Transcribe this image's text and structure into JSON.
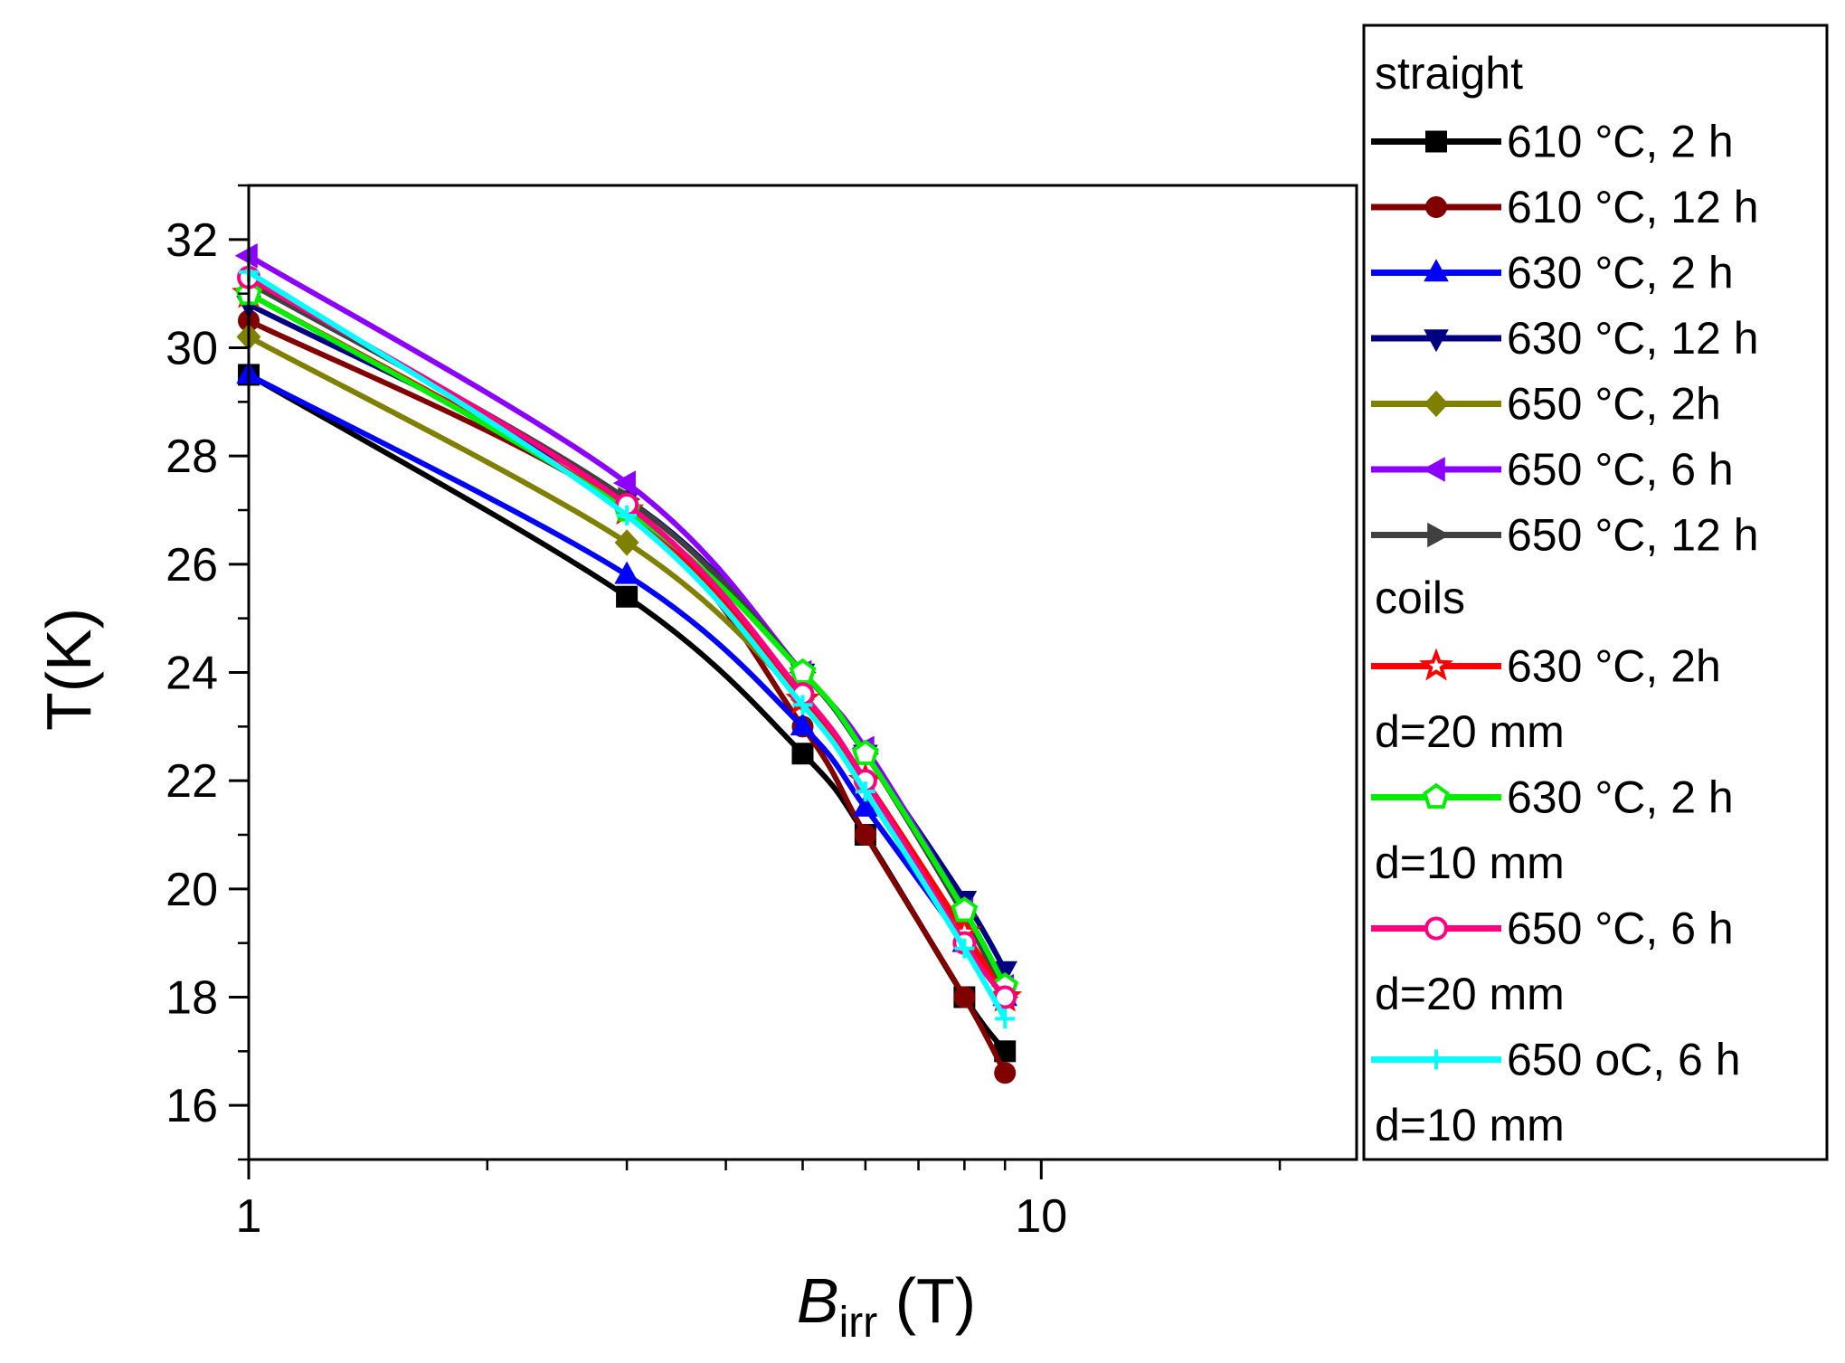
{
  "chart_data": {
    "type": "line",
    "x_scale": "log",
    "xlim": [
      1,
      25
    ],
    "ylim": [
      15,
      33
    ],
    "x_ticks": [
      1,
      10
    ],
    "x_tick_labels": [
      "1",
      "10"
    ],
    "y_ticks": [
      16,
      18,
      20,
      22,
      24,
      26,
      28,
      30,
      32
    ],
    "y_tick_labels": [
      "16",
      "18",
      "20",
      "22",
      "24",
      "26",
      "28",
      "30",
      "32"
    ],
    "ylabel": "T(K)",
    "xlabel_main": "B",
    "xlabel_sub": "irr",
    "xlabel_unit": " (T)",
    "grid": false,
    "legend_placement": "right",
    "legend": [
      {
        "kind": "header",
        "text": "straight"
      },
      {
        "kind": "entry",
        "series": 0,
        "lines": [
          "610 °C, 2 h"
        ]
      },
      {
        "kind": "entry",
        "series": 1,
        "lines": [
          "610 °C, 12 h"
        ]
      },
      {
        "kind": "entry",
        "series": 2,
        "lines": [
          "630 °C, 2 h"
        ]
      },
      {
        "kind": "entry",
        "series": 3,
        "lines": [
          "630 °C, 12 h"
        ]
      },
      {
        "kind": "entry",
        "series": 4,
        "lines": [
          "650 °C, 2h"
        ]
      },
      {
        "kind": "entry",
        "series": 5,
        "lines": [
          "650 °C, 6 h"
        ]
      },
      {
        "kind": "entry",
        "series": 6,
        "lines": [
          "650 °C, 12 h"
        ]
      },
      {
        "kind": "header",
        "text": "coils"
      },
      {
        "kind": "entry",
        "series": 7,
        "lines": [
          "630 °C, 2h",
          "d=20 mm"
        ]
      },
      {
        "kind": "entry",
        "series": 8,
        "lines": [
          "630 °C, 2 h",
          "d=10 mm"
        ]
      },
      {
        "kind": "entry",
        "series": 9,
        "lines": [
          "650 °C, 6 h",
          "d=20 mm"
        ]
      },
      {
        "kind": "entry",
        "series": 10,
        "lines": [
          "650 oC, 6 h",
          "d=10 mm"
        ]
      }
    ],
    "series": [
      {
        "name": "610 °C, 2 h",
        "color": "#000000",
        "marker": "square",
        "x": [
          1,
          3,
          5,
          6,
          8,
          9
        ],
        "y": [
          29.5,
          25.4,
          22.5,
          21.0,
          18.0,
          17.0
        ]
      },
      {
        "name": "610 °C, 12 h",
        "color": "#800000",
        "marker": "circle",
        "x": [
          1,
          3,
          5,
          6,
          8,
          9
        ],
        "y": [
          30.5,
          27.0,
          23.0,
          21.0,
          18.0,
          16.6
        ]
      },
      {
        "name": "630 °C, 2 h",
        "color": "#0000ff",
        "marker": "triangle-up",
        "x": [
          1,
          3,
          5,
          6,
          8,
          9
        ],
        "y": [
          29.5,
          25.8,
          23.0,
          21.5,
          19.0,
          18.0
        ]
      },
      {
        "name": "630 °C, 12 h",
        "color": "#000080",
        "marker": "triangle-down",
        "x": [
          1,
          3,
          5,
          6,
          8,
          9
        ],
        "y": [
          30.8,
          27.2,
          24.0,
          22.5,
          19.8,
          18.5
        ]
      },
      {
        "name": "650 °C, 2h",
        "color": "#808000",
        "marker": "diamond",
        "x": [
          1,
          3,
          5,
          6,
          8,
          9
        ],
        "y": [
          30.2,
          26.4,
          23.5,
          22.0,
          19.2,
          18.0
        ]
      },
      {
        "name": "650 °C, 6 h",
        "color": "#8b00ff",
        "marker": "triangle-left",
        "x": [
          1,
          3,
          5,
          6,
          8,
          9
        ],
        "y": [
          31.7,
          27.5,
          24.0,
          22.6,
          19.6,
          18.2
        ]
      },
      {
        "name": "650 °C, 12 h",
        "color": "#404040",
        "marker": "triangle-right",
        "x": [
          1,
          3,
          5,
          6,
          8,
          9
        ],
        "y": [
          31.2,
          27.2,
          24.0,
          22.5,
          19.5,
          18.0
        ]
      },
      {
        "name": "630 °C, 2h d=20 mm",
        "color": "#ff0000",
        "marker": "star-open",
        "x": [
          1,
          3,
          5,
          6,
          8,
          9
        ],
        "y": [
          31.0,
          27.0,
          23.5,
          22.0,
          19.2,
          18.0
        ]
      },
      {
        "name": "630 °C, 2 h d=10 mm",
        "color": "#00ee00",
        "marker": "pentagon-open",
        "x": [
          1,
          3,
          5,
          6,
          8,
          9
        ],
        "y": [
          31.0,
          27.0,
          24.0,
          22.5,
          19.6,
          18.2
        ]
      },
      {
        "name": "650 °C, 6 h d=20 mm",
        "color": "#ff0080",
        "marker": "circle-open",
        "x": [
          1,
          3,
          5,
          6,
          8,
          9
        ],
        "y": [
          31.3,
          27.1,
          23.6,
          22.0,
          19.0,
          18.0
        ]
      },
      {
        "name": "650 oC, 6 h d=10 mm",
        "color": "#00ffff",
        "marker": "plus",
        "x": [
          1,
          3,
          5,
          6,
          8,
          9
        ],
        "y": [
          31.4,
          26.9,
          23.4,
          21.8,
          18.9,
          17.6
        ]
      }
    ]
  }
}
